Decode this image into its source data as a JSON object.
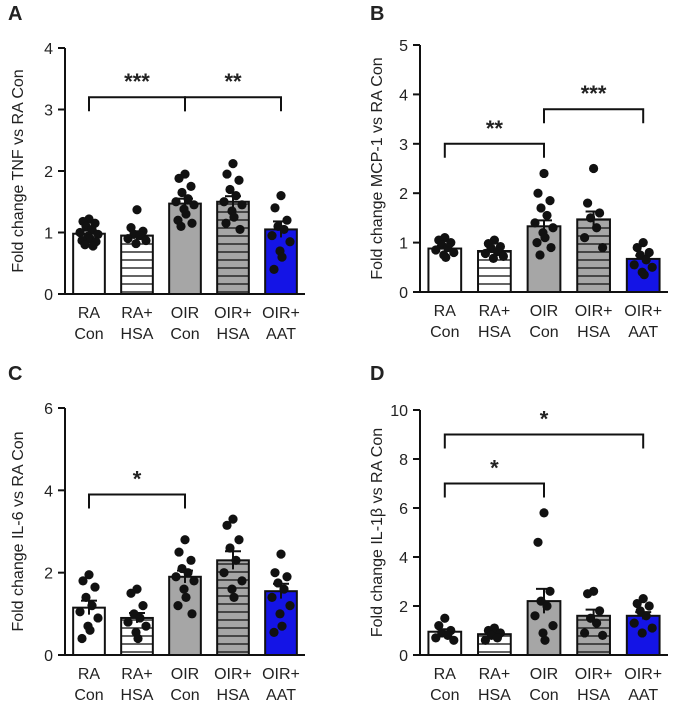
{
  "pattern_colors": {
    "white": "#ffffff",
    "gray": "#a6a6a6",
    "blue": "#1414e6",
    "point": "#111111",
    "axis": "#111111"
  },
  "chart_data": [
    {
      "type": "bar",
      "panel": "A",
      "ylabel": "Fold change TNF vs RA Con",
      "ylim": [
        0,
        4
      ],
      "yticks": [
        0,
        1,
        2,
        3,
        4
      ],
      "categories": [
        [
          "RA",
          "Con"
        ],
        [
          "RA+",
          "HSA"
        ],
        [
          "OIR",
          "Con"
        ],
        [
          "OIR+",
          "HSA"
        ],
        [
          "OIR+",
          "AAT"
        ]
      ],
      "fills": [
        "white",
        "white-hstripe",
        "gray",
        "gray-hstripe",
        "blue"
      ],
      "values": [
        0.98,
        0.95,
        1.47,
        1.5,
        1.05
      ],
      "errors": [
        0.05,
        0.07,
        0.08,
        0.09,
        0.13
      ],
      "points": [
        [
          1.22,
          1.18,
          1.15,
          1.1,
          1.05,
          1.0,
          0.97,
          0.94,
          0.9,
          0.87,
          0.85,
          0.8,
          0.78
        ],
        [
          1.37,
          1.08,
          1.02,
          0.97,
          0.95,
          0.9,
          0.87,
          0.82
        ],
        [
          1.95,
          1.88,
          1.75,
          1.65,
          1.55,
          1.5,
          1.45,
          1.38,
          1.3,
          1.2,
          1.15,
          1.1
        ],
        [
          2.12,
          1.95,
          1.85,
          1.7,
          1.6,
          1.5,
          1.45,
          1.35,
          1.25,
          1.15,
          1.05
        ],
        [
          1.6,
          1.4,
          1.2,
          1.1,
          1.05,
          0.95,
          0.85,
          0.7,
          0.6,
          0.4
        ]
      ],
      "significance": [
        {
          "from": 0,
          "to": 2,
          "y": 3.2,
          "label": "***"
        },
        {
          "from": 2,
          "to": 4,
          "y": 3.2,
          "label": "**"
        }
      ]
    },
    {
      "type": "bar",
      "panel": "B",
      "ylabel": "Fold change MCP-1 vs RA Con",
      "ylim": [
        0,
        5
      ],
      "yticks": [
        0,
        1,
        2,
        3,
        4,
        5
      ],
      "categories": [
        [
          "RA",
          "Con"
        ],
        [
          "RA+",
          "HSA"
        ],
        [
          "OIR",
          "Con"
        ],
        [
          "OIR+",
          "HSA"
        ],
        [
          "OIR+",
          "AAT"
        ]
      ],
      "fills": [
        "white",
        "white-hstripe",
        "gray",
        "gray-hstripe",
        "blue"
      ],
      "values": [
        0.88,
        0.83,
        1.33,
        1.47,
        0.67
      ],
      "errors": [
        0.05,
        0.05,
        0.12,
        0.16,
        0.07
      ],
      "points": [
        [
          1.1,
          1.05,
          1.0,
          0.95,
          0.9,
          0.85,
          0.8,
          0.75,
          0.7
        ],
        [
          1.05,
          0.98,
          0.92,
          0.88,
          0.82,
          0.78,
          0.72,
          0.68
        ],
        [
          2.4,
          2.0,
          1.85,
          1.7,
          1.55,
          1.4,
          1.3,
          1.2,
          1.1,
          1.0,
          0.9,
          0.75
        ],
        [
          2.5,
          1.8,
          1.6,
          1.5,
          1.3,
          1.1,
          0.9
        ],
        [
          1.0,
          0.9,
          0.8,
          0.75,
          0.65,
          0.55,
          0.5,
          0.4,
          0.35
        ]
      ],
      "significance": [
        {
          "from": 0,
          "to": 2,
          "y": 3.0,
          "label": "**"
        },
        {
          "from": 2,
          "to": 4,
          "y": 3.7,
          "label": "***"
        }
      ]
    },
    {
      "type": "bar",
      "panel": "C",
      "ylabel": "Fold change IL-6 vs RA Con",
      "ylim": [
        0,
        6
      ],
      "yticks": [
        0,
        2,
        4,
        6
      ],
      "categories": [
        [
          "RA",
          "Con"
        ],
        [
          "RA+",
          "HSA"
        ],
        [
          "OIR",
          "Con"
        ],
        [
          "OIR+",
          "HSA"
        ],
        [
          "OIR+",
          "AAT"
        ]
      ],
      "fills": [
        "white",
        "white-hstripe",
        "gray",
        "gray-hstripe",
        "blue"
      ],
      "values": [
        1.15,
        0.9,
        1.9,
        2.3,
        1.55
      ],
      "errors": [
        0.17,
        0.12,
        0.15,
        0.22,
        0.18
      ],
      "points": [
        [
          1.95,
          1.8,
          1.65,
          1.4,
          1.2,
          1.05,
          0.9,
          0.7,
          0.6,
          0.4
        ],
        [
          1.6,
          1.5,
          1.2,
          1.0,
          0.9,
          0.8,
          0.7,
          0.55,
          0.4
        ],
        [
          2.8,
          2.5,
          2.3,
          2.1,
          2.0,
          1.9,
          1.8,
          1.6,
          1.4,
          1.2,
          1.0
        ],
        [
          3.3,
          3.15,
          2.8,
          2.6,
          2.3,
          2.0,
          1.8,
          1.6,
          1.4
        ],
        [
          2.45,
          2.0,
          1.9,
          1.75,
          1.6,
          1.4,
          1.2,
          1.0,
          0.7,
          0.55
        ]
      ],
      "significance": [
        {
          "from": 0,
          "to": 2,
          "y": 3.9,
          "label": "*"
        }
      ]
    },
    {
      "type": "bar",
      "panel": "D",
      "ylabel": "Fold change IL-1β vs RA Con",
      "ylim": [
        0,
        10
      ],
      "yticks": [
        0,
        2,
        4,
        6,
        8,
        10
      ],
      "categories": [
        [
          "RA",
          "Con"
        ],
        [
          "RA+",
          "HSA"
        ],
        [
          "OIR",
          "Con"
        ],
        [
          "OIR+",
          "HSA"
        ],
        [
          "OIR+",
          "AAT"
        ]
      ],
      "fills": [
        "white",
        "white-hstripe",
        "gray",
        "gray-hstripe",
        "blue"
      ],
      "values": [
        0.95,
        0.85,
        2.2,
        1.6,
        1.6
      ],
      "errors": [
        0.1,
        0.07,
        0.5,
        0.25,
        0.15
      ],
      "points": [
        [
          1.5,
          1.2,
          1.0,
          0.9,
          0.8,
          0.7,
          0.6
        ],
        [
          1.1,
          1.0,
          0.9,
          0.8,
          0.7,
          0.6
        ],
        [
          5.8,
          4.6,
          2.6,
          2.2,
          2.0,
          1.6,
          1.2,
          0.9,
          0.6
        ],
        [
          2.6,
          2.5,
          1.8,
          1.5,
          1.3,
          0.9,
          0.8
        ],
        [
          2.3,
          2.1,
          2.0,
          1.8,
          1.6,
          1.3,
          1.1,
          0.9
        ]
      ],
      "significance": [
        {
          "from": 0,
          "to": 4,
          "y": 9.0,
          "label": "*"
        },
        {
          "from": 0,
          "to": 2,
          "y": 7.0,
          "label": "*"
        }
      ]
    }
  ]
}
